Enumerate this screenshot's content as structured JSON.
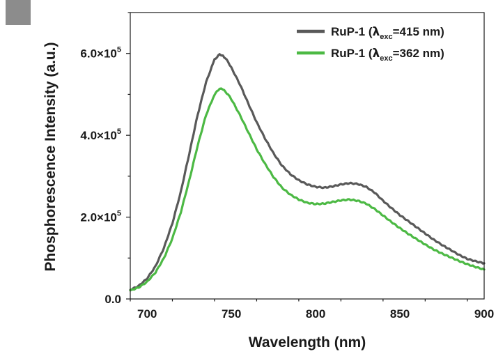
{
  "chart_data": {
    "type": "line",
    "title": "",
    "xlabel": "Wavelength (nm)",
    "ylabel": "Phosphorescence Intensity (a.u.)",
    "xlim": [
      690,
      900
    ],
    "ylim": [
      0,
      700000
    ],
    "x_ticks": [
      700,
      750,
      800,
      850,
      900
    ],
    "y_ticks": [
      {
        "value": 0,
        "label": "0.0"
      },
      {
        "value": 200000,
        "label": "2.0×10",
        "exp": "5"
      },
      {
        "value": 400000,
        "label": "4.0×10",
        "exp": "5"
      },
      {
        "value": 600000,
        "label": "6.0×10",
        "exp": "5"
      }
    ],
    "legend_position": "top-right",
    "series": [
      {
        "name": "RuP-1 (λexc=415 nm)",
        "legend_prefix": "RuP-1 (",
        "legend_symbol": "λ",
        "legend_sub": "exc",
        "legend_suffix": "=415 nm)",
        "color": "#595959",
        "x": [
          690,
          695,
          700,
          705,
          710,
          715,
          720,
          725,
          730,
          735,
          740,
          743,
          745,
          748,
          750,
          755,
          760,
          765,
          770,
          775,
          780,
          785,
          790,
          795,
          800,
          805,
          810,
          815,
          820,
          825,
          830,
          835,
          840,
          845,
          850,
          855,
          860,
          865,
          870,
          875,
          880,
          885,
          890,
          895,
          900
        ],
        "values": [
          22000,
          32000,
          50000,
          80000,
          125000,
          185000,
          262000,
          355000,
          450000,
          530000,
          585000,
          598000,
          595000,
          580000,
          565000,
          525000,
          478000,
          432000,
          392000,
          356000,
          326000,
          305000,
          290000,
          280000,
          274000,
          272000,
          275000,
          280000,
          283000,
          281000,
          274000,
          260000,
          240000,
          222000,
          205000,
          190000,
          175000,
          160000,
          145000,
          132000,
          120000,
          108000,
          98000,
          92000,
          87000
        ]
      },
      {
        "name": "RuP-1 (λexc=362 nm)",
        "legend_prefix": "RuP-1 (",
        "legend_symbol": "λ",
        "legend_sub": "exc",
        "legend_suffix": "=362 nm)",
        "color": "#4cb944",
        "x": [
          690,
          695,
          700,
          705,
          710,
          715,
          720,
          725,
          730,
          735,
          740,
          743,
          745,
          748,
          750,
          755,
          760,
          765,
          770,
          775,
          780,
          785,
          790,
          795,
          800,
          805,
          810,
          815,
          820,
          825,
          830,
          835,
          840,
          845,
          850,
          855,
          860,
          865,
          870,
          875,
          880,
          885,
          890,
          895,
          900
        ],
        "values": [
          21000,
          28000,
          42000,
          65000,
          100000,
          148000,
          212000,
          290000,
          375000,
          450000,
          500000,
          514000,
          512000,
          500000,
          488000,
          450000,
          408000,
          366000,
          330000,
          298000,
          272000,
          255000,
          243000,
          235000,
          232000,
          233000,
          237000,
          241000,
          243000,
          240000,
          233000,
          220000,
          204000,
          188000,
          173000,
          159000,
          146000,
          133000,
          121000,
          111000,
          102000,
          93000,
          85000,
          78000,
          72000
        ]
      }
    ]
  }
}
